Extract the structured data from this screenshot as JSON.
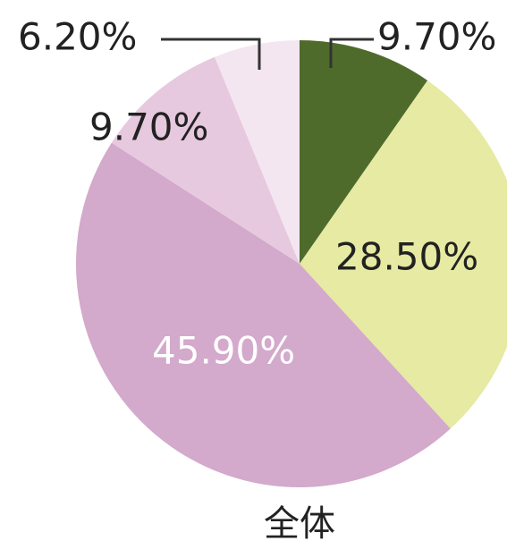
{
  "chart_data": {
    "type": "pie",
    "caption": "全体",
    "values": [
      9.7,
      28.5,
      45.9,
      9.7,
      6.2
    ],
    "value_labels": [
      "9.70%",
      "28.50%",
      "45.90%",
      "9.70%",
      "6.20%"
    ],
    "colors": [
      "#4f6b2c",
      "#e6eaa2",
      "#d3a9cc",
      "#e7c9df",
      "#f4e6f1"
    ]
  }
}
